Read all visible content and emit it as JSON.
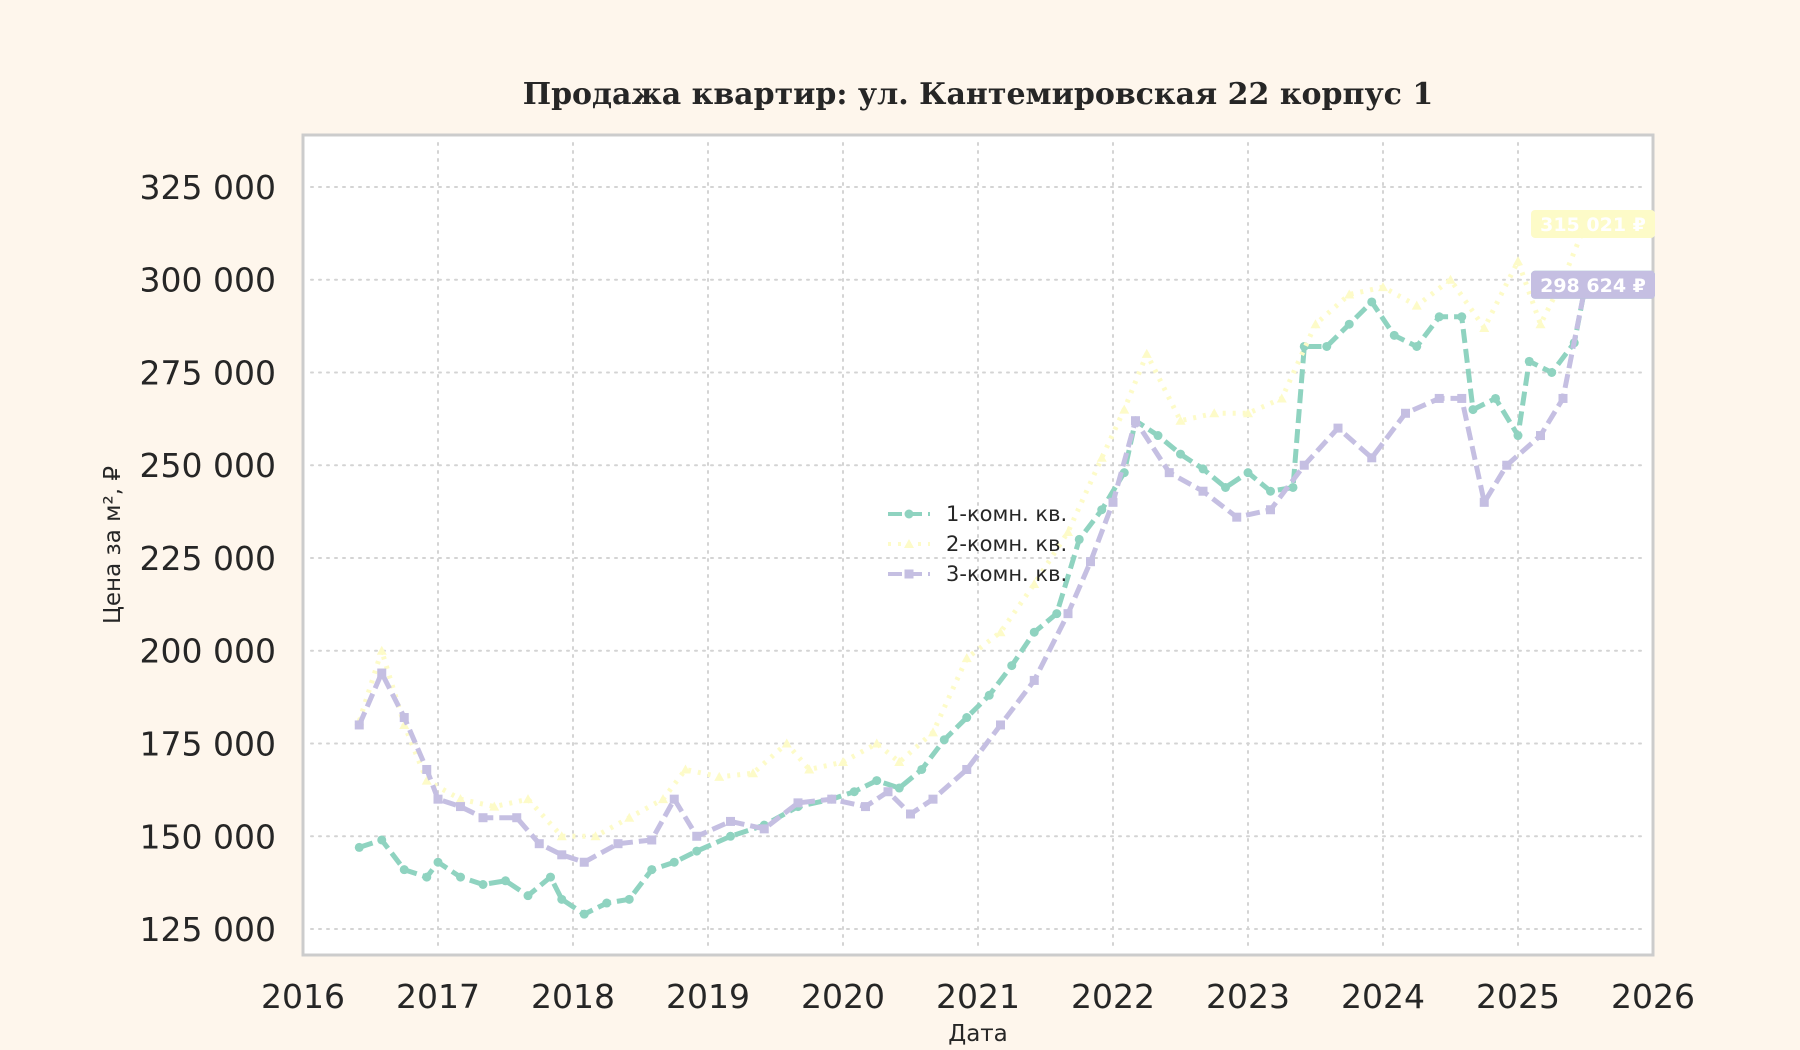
{
  "chart_data": {
    "type": "line",
    "title": "Продажа квартир: ул. Кантемировская 22 корпус 1",
    "xlabel": "Дата",
    "ylabel": "Цена за м², ₽",
    "xlim": [
      "2016-01-01",
      "2026-01-01"
    ],
    "ylim": [
      118000,
      339000
    ],
    "xticks": [
      "2016",
      "2017",
      "2018",
      "2019",
      "2020",
      "2021",
      "2022",
      "2023",
      "2024",
      "2025",
      "2026"
    ],
    "yticks": [
      125000,
      150000,
      175000,
      200000,
      225000,
      250000,
      275000,
      300000,
      325000
    ],
    "ytick_labels": [
      "125 000",
      "150 000",
      "175 000",
      "200 000",
      "225 000",
      "250 000",
      "275 000",
      "300 000",
      "325 000"
    ],
    "grid": true,
    "legend_position": "center",
    "series": [
      {
        "name": "1-комн. кв.",
        "color": "#8fd3c0",
        "marker": "circle",
        "last_value_label": "298 624 ₽",
        "points": [
          [
            "2016-06",
            147000
          ],
          [
            "2016-08",
            149000
          ],
          [
            "2016-10",
            141000
          ],
          [
            "2016-12",
            139000
          ],
          [
            "2017-01",
            143000
          ],
          [
            "2017-03",
            139000
          ],
          [
            "2017-05",
            137000
          ],
          [
            "2017-07",
            138000
          ],
          [
            "2017-09",
            134000
          ],
          [
            "2017-11",
            139000
          ],
          [
            "2017-12",
            133000
          ],
          [
            "2018-02",
            129000
          ],
          [
            "2018-04",
            132000
          ],
          [
            "2018-06",
            133000
          ],
          [
            "2018-08",
            141000
          ],
          [
            "2018-10",
            143000
          ],
          [
            "2018-12",
            146000
          ],
          [
            "2019-03",
            150000
          ],
          [
            "2019-06",
            153000
          ],
          [
            "2019-09",
            158000
          ],
          [
            "2019-12",
            160000
          ],
          [
            "2020-02",
            162000
          ],
          [
            "2020-04",
            165000
          ],
          [
            "2020-06",
            163000
          ],
          [
            "2020-08",
            168000
          ],
          [
            "2020-10",
            176000
          ],
          [
            "2020-12",
            182000
          ],
          [
            "2021-02",
            188000
          ],
          [
            "2021-04",
            196000
          ],
          [
            "2021-06",
            205000
          ],
          [
            "2021-08",
            210000
          ],
          [
            "2021-10",
            230000
          ],
          [
            "2021-12",
            238000
          ],
          [
            "2022-02",
            248000
          ],
          [
            "2022-03",
            262000
          ],
          [
            "2022-05",
            258000
          ],
          [
            "2022-07",
            253000
          ],
          [
            "2022-09",
            249000
          ],
          [
            "2022-11",
            244000
          ],
          [
            "2023-01",
            248000
          ],
          [
            "2023-03",
            243000
          ],
          [
            "2023-05",
            244000
          ],
          [
            "2023-06",
            282000
          ],
          [
            "2023-08",
            282000
          ],
          [
            "2023-10",
            288000
          ],
          [
            "2023-12",
            294000
          ],
          [
            "2024-02",
            285000
          ],
          [
            "2024-04",
            282000
          ],
          [
            "2024-06",
            290000
          ],
          [
            "2024-08",
            290000
          ],
          [
            "2024-09",
            265000
          ],
          [
            "2024-11",
            268000
          ],
          [
            "2025-01",
            258000
          ],
          [
            "2025-02",
            278000
          ],
          [
            "2025-04",
            275000
          ],
          [
            "2025-06",
            283000
          ],
          [
            "2025-07",
            298624
          ]
        ]
      },
      {
        "name": "2-комн. кв.",
        "color": "#fdfbc8",
        "marker": "triangle",
        "last_value_label": "315 021 ₽",
        "points": [
          [
            "2016-06",
            181000
          ],
          [
            "2016-08",
            200000
          ],
          [
            "2016-10",
            180000
          ],
          [
            "2016-12",
            165000
          ],
          [
            "2017-03",
            160000
          ],
          [
            "2017-06",
            158000
          ],
          [
            "2017-09",
            160000
          ],
          [
            "2017-12",
            150000
          ],
          [
            "2018-03",
            150000
          ],
          [
            "2018-06",
            155000
          ],
          [
            "2018-09",
            160000
          ],
          [
            "2018-11",
            168000
          ],
          [
            "2019-02",
            166000
          ],
          [
            "2019-05",
            167000
          ],
          [
            "2019-08",
            175000
          ],
          [
            "2019-10",
            168000
          ],
          [
            "2020-01",
            170000
          ],
          [
            "2020-04",
            175000
          ],
          [
            "2020-06",
            170000
          ],
          [
            "2020-09",
            178000
          ],
          [
            "2020-12",
            198000
          ],
          [
            "2021-03",
            205000
          ],
          [
            "2021-06",
            218000
          ],
          [
            "2021-09",
            232000
          ],
          [
            "2021-12",
            252000
          ],
          [
            "2022-02",
            265000
          ],
          [
            "2022-04",
            280000
          ],
          [
            "2022-07",
            262000
          ],
          [
            "2022-10",
            264000
          ],
          [
            "2023-01",
            264000
          ],
          [
            "2023-04",
            268000
          ],
          [
            "2023-07",
            288000
          ],
          [
            "2023-10",
            296000
          ],
          [
            "2024-01",
            298000
          ],
          [
            "2024-04",
            293000
          ],
          [
            "2024-07",
            300000
          ],
          [
            "2024-10",
            287000
          ],
          [
            "2025-01",
            305000
          ],
          [
            "2025-03",
            288000
          ],
          [
            "2025-05",
            300000
          ],
          [
            "2025-07",
            315021
          ]
        ]
      },
      {
        "name": "3-комн. кв.",
        "color": "#c5bfe2",
        "marker": "square",
        "last_value_label": "298 624 ₽",
        "points": [
          [
            "2016-06",
            180000
          ],
          [
            "2016-08",
            194000
          ],
          [
            "2016-10",
            182000
          ],
          [
            "2016-12",
            168000
          ],
          [
            "2017-01",
            160000
          ],
          [
            "2017-03",
            158000
          ],
          [
            "2017-05",
            155000
          ],
          [
            "2017-08",
            155000
          ],
          [
            "2017-10",
            148000
          ],
          [
            "2017-12",
            145000
          ],
          [
            "2018-02",
            143000
          ],
          [
            "2018-05",
            148000
          ],
          [
            "2018-08",
            149000
          ],
          [
            "2018-10",
            160000
          ],
          [
            "2018-12",
            150000
          ],
          [
            "2019-03",
            154000
          ],
          [
            "2019-06",
            152000
          ],
          [
            "2019-09",
            159000
          ],
          [
            "2019-12",
            160000
          ],
          [
            "2020-03",
            158000
          ],
          [
            "2020-05",
            162000
          ],
          [
            "2020-07",
            156000
          ],
          [
            "2020-09",
            160000
          ],
          [
            "2020-12",
            168000
          ],
          [
            "2021-03",
            180000
          ],
          [
            "2021-06",
            192000
          ],
          [
            "2021-09",
            210000
          ],
          [
            "2021-11",
            224000
          ],
          [
            "2022-01",
            240000
          ],
          [
            "2022-03",
            262000
          ],
          [
            "2022-06",
            248000
          ],
          [
            "2022-09",
            243000
          ],
          [
            "2022-12",
            236000
          ],
          [
            "2023-03",
            238000
          ],
          [
            "2023-06",
            250000
          ],
          [
            "2023-09",
            260000
          ],
          [
            "2023-12",
            252000
          ],
          [
            "2024-03",
            264000
          ],
          [
            "2024-06",
            268000
          ],
          [
            "2024-08",
            268000
          ],
          [
            "2024-10",
            240000
          ],
          [
            "2024-12",
            250000
          ],
          [
            "2025-03",
            258000
          ],
          [
            "2025-05",
            268000
          ],
          [
            "2025-07",
            298624
          ]
        ]
      }
    ]
  }
}
